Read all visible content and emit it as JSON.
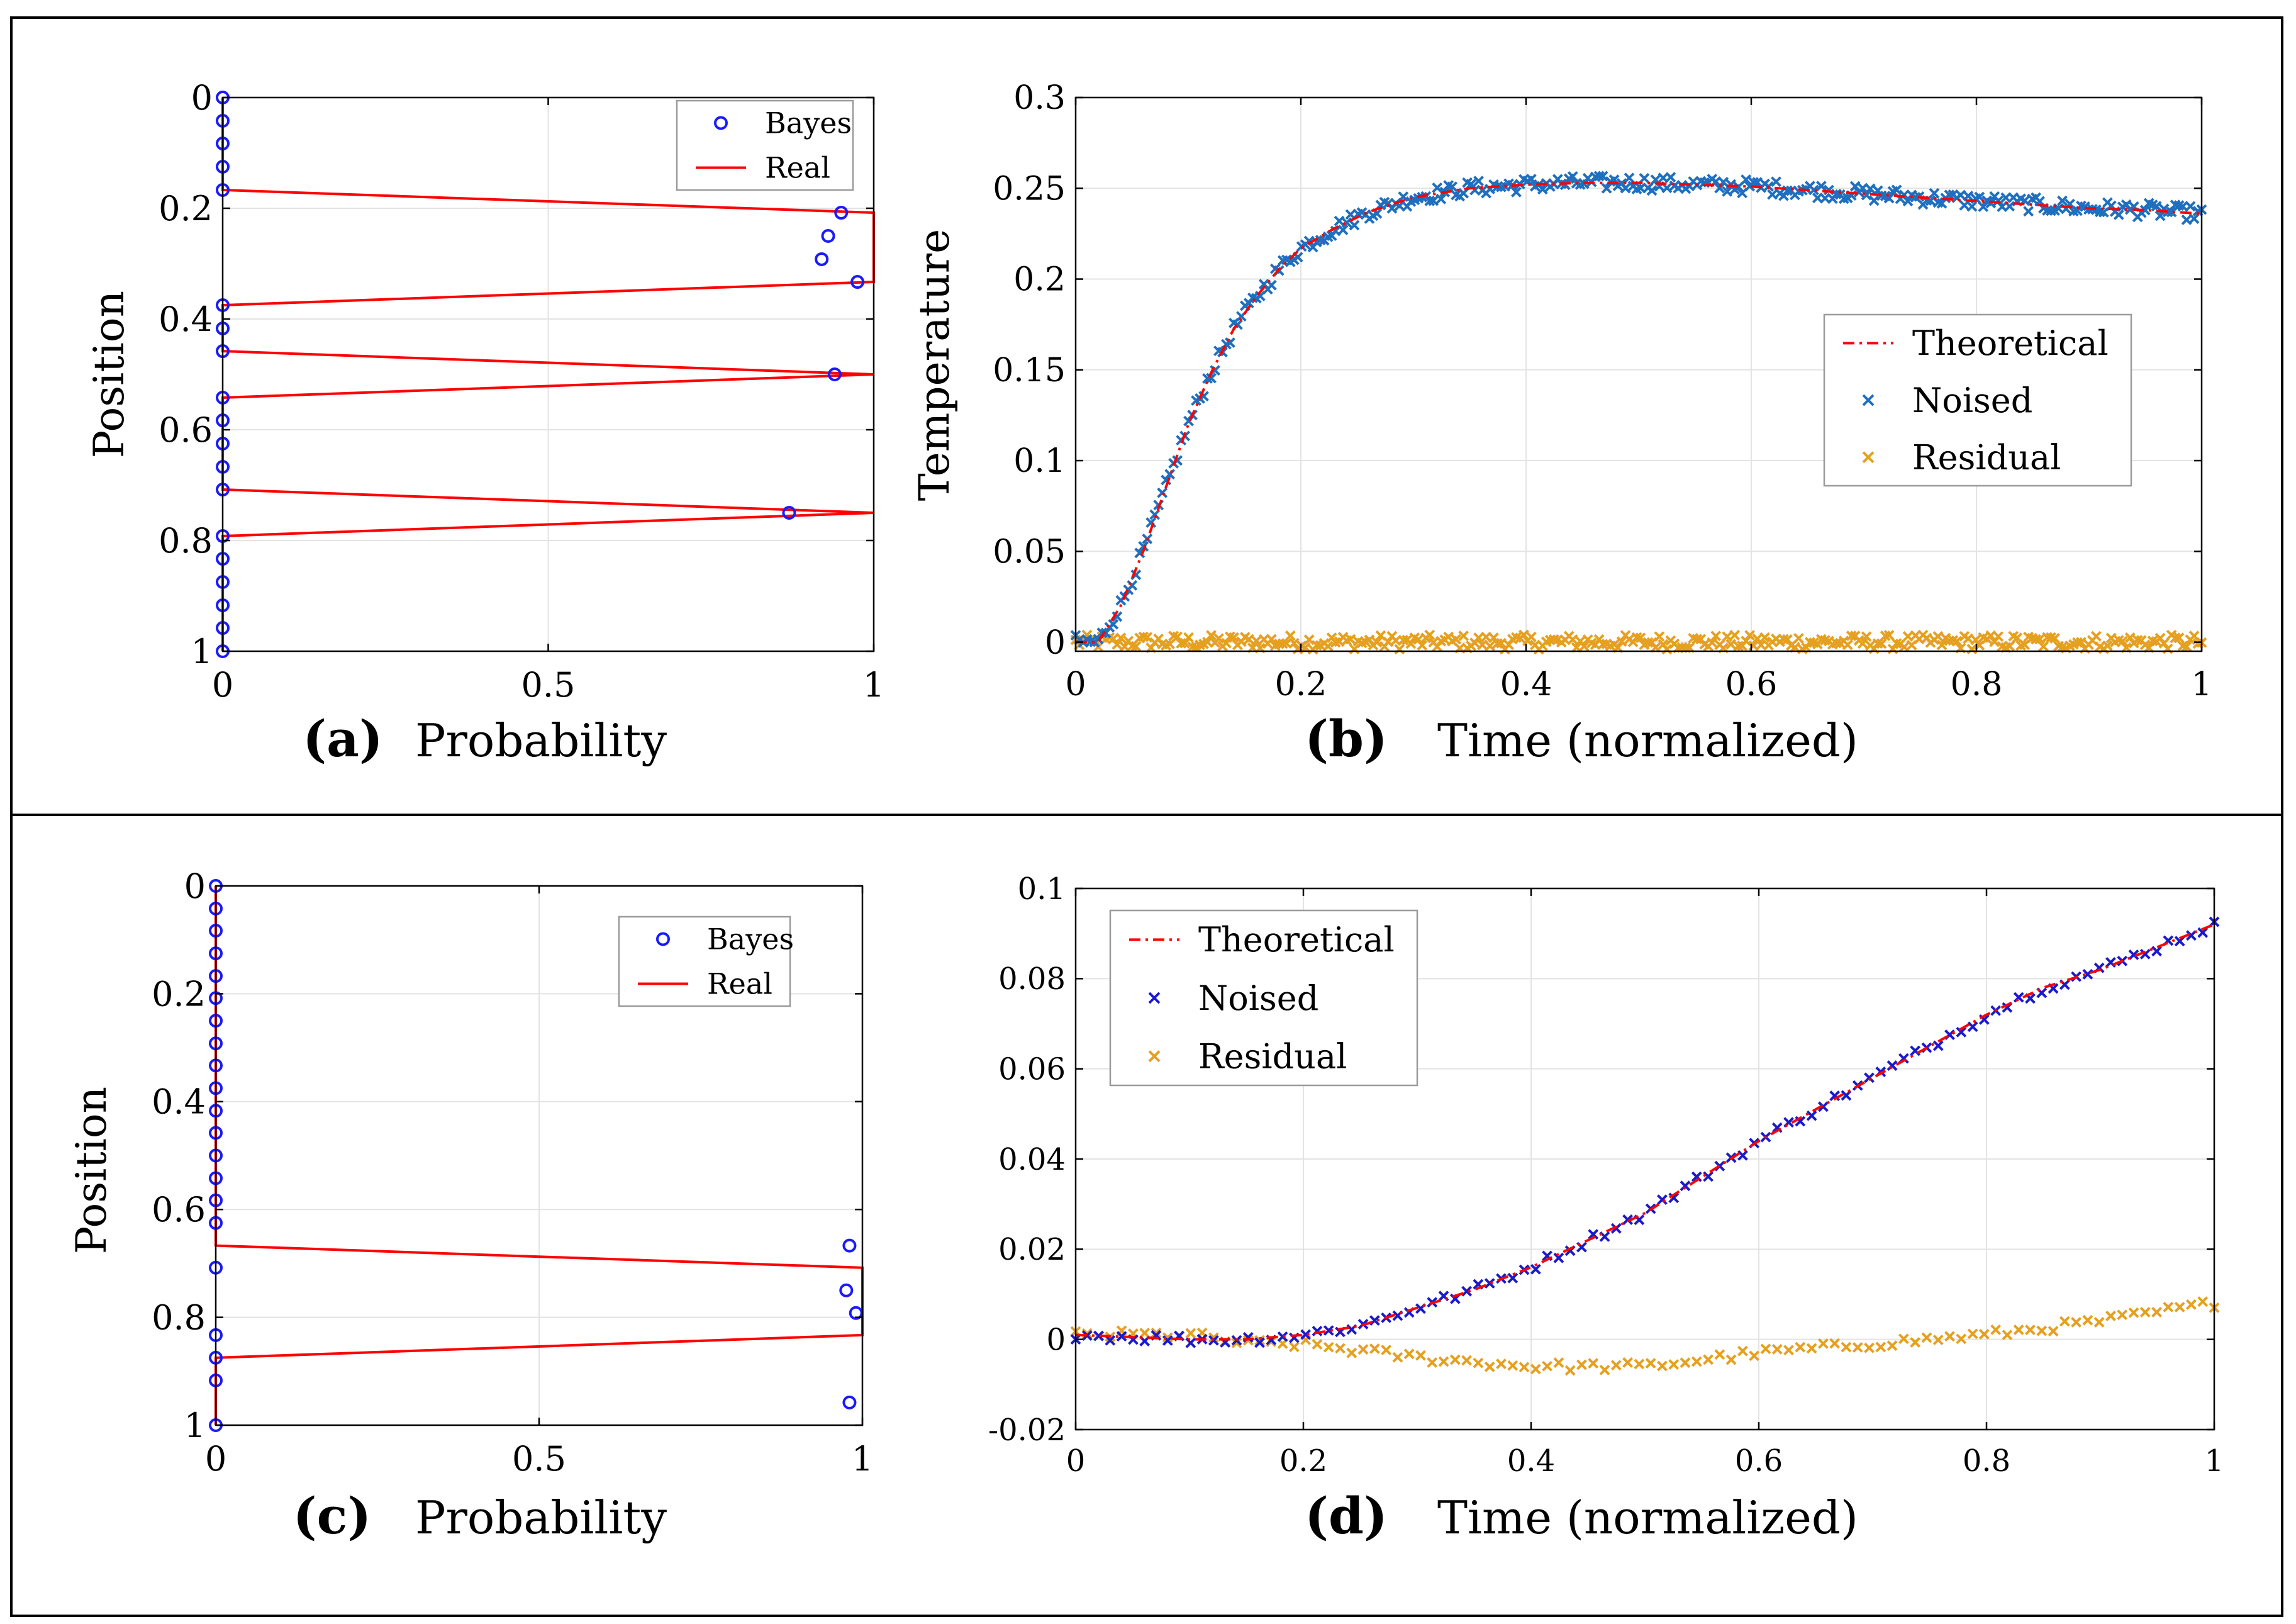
{
  "figure": {
    "panel_letters": [
      "(a)",
      "(b)",
      "(c)",
      "(d)"
    ]
  },
  "chart_data": [
    {
      "id": "a",
      "type": "scatter+line",
      "title": "",
      "panel_label": "(a)",
      "xlabel": "Probability",
      "ylabel": "Position",
      "xlim": [
        0,
        1
      ],
      "ylim": [
        0,
        1
      ],
      "y_reversed": true,
      "xticks": [
        0,
        0.5,
        1
      ],
      "xtick_labels": [
        "0",
        "0.5",
        "1"
      ],
      "yticks": [
        0,
        0.2,
        0.4,
        0.6,
        0.8,
        1
      ],
      "ytick_labels": [
        "0",
        "0.2",
        "0.4",
        "0.6",
        "0.8",
        "1"
      ],
      "grid": true,
      "legend": {
        "placement": "top-right",
        "entries": [
          "Bayes",
          "Real"
        ]
      },
      "colors": {
        "bayes": "#1a1aff",
        "real": "#ff0000"
      },
      "series": [
        {
          "name": "Bayes",
          "marker": "circle",
          "points": [
            [
              0,
              0
            ],
            [
              0,
              0.042
            ],
            [
              0,
              0.083
            ],
            [
              0,
              0.125
            ],
            [
              0,
              0.167
            ],
            [
              0.95,
              0.208
            ],
            [
              0.93,
              0.25
            ],
            [
              0.92,
              0.292
            ],
            [
              0.975,
              0.333
            ],
            [
              0,
              0.375
            ],
            [
              0,
              0.417
            ],
            [
              0,
              0.458
            ],
            [
              0.94,
              0.5
            ],
            [
              0,
              0.542
            ],
            [
              0,
              0.583
            ],
            [
              0,
              0.625
            ],
            [
              0,
              0.667
            ],
            [
              0,
              0.708
            ],
            [
              0.87,
              0.75
            ],
            [
              0,
              0.792
            ],
            [
              0,
              0.833
            ],
            [
              0,
              0.875
            ],
            [
              0,
              0.917
            ],
            [
              0,
              0.958
            ],
            [
              0,
              1
            ]
          ]
        },
        {
          "name": "Real",
          "line": "solid",
          "points": [
            [
              0,
              0
            ],
            [
              0,
              0.167
            ],
            [
              1,
              0.208
            ],
            [
              1,
              0.333
            ],
            [
              0,
              0.375
            ],
            [
              0,
              0.458
            ],
            [
              1,
              0.5
            ],
            [
              0,
              0.542
            ],
            [
              0,
              0.708
            ],
            [
              1,
              0.75
            ],
            [
              0,
              0.792
            ],
            [
              0,
              1
            ]
          ]
        }
      ]
    },
    {
      "id": "b",
      "type": "line+scatter",
      "title": "",
      "panel_label": "(b)",
      "xlabel": "Time (normalized)",
      "ylabel": "Temperature",
      "xlim": [
        0,
        1
      ],
      "ylim": [
        -0.005,
        0.3
      ],
      "xticks": [
        0,
        0.2,
        0.4,
        0.6,
        0.8,
        1
      ],
      "xtick_labels": [
        "0",
        "0.2",
        "0.4",
        "0.6",
        "0.8",
        "1"
      ],
      "yticks": [
        0,
        0.05,
        0.1,
        0.15,
        0.2,
        0.25,
        0.3
      ],
      "ytick_labels": [
        "0",
        "0.05",
        "0.1",
        "0.15",
        "0.2",
        "0.25",
        "0.3"
      ],
      "grid": true,
      "legend": {
        "placement": "center-right",
        "entries": [
          "Theoretical",
          "Noised",
          "Residual"
        ]
      },
      "colors": {
        "theoretical": "#ff0000",
        "noised": "#1f6fbf",
        "residual": "#e6a020"
      },
      "n_points": 300,
      "noise_amplitude": 0.004,
      "series": [
        {
          "name": "Theoretical",
          "line": "dash-dot",
          "x": [
            0,
            0.02,
            0.04,
            0.06,
            0.08,
            0.1,
            0.12,
            0.14,
            0.16,
            0.18,
            0.2,
            0.23,
            0.26,
            0.3,
            0.35,
            0.4,
            0.45,
            0.5,
            0.55,
            0.6,
            0.65,
            0.7,
            0.75,
            0.8,
            0.85,
            0.9,
            0.95,
            1
          ],
          "y": [
            0,
            0,
            0.02,
            0.05,
            0.085,
            0.12,
            0.148,
            0.172,
            0.19,
            0.205,
            0.217,
            0.228,
            0.237,
            0.245,
            0.25,
            0.252,
            0.253,
            0.253,
            0.252,
            0.251,
            0.249,
            0.247,
            0.245,
            0.243,
            0.241,
            0.239,
            0.238,
            0.236
          ]
        },
        {
          "name": "Noised",
          "marker": "x",
          "follows": "Theoretical"
        },
        {
          "name": "Residual",
          "marker": "x",
          "around": 0
        }
      ]
    },
    {
      "id": "c",
      "type": "scatter+line",
      "title": "",
      "panel_label": "(c)",
      "xlabel": "Probability",
      "ylabel": "Position",
      "xlim": [
        0,
        1
      ],
      "ylim": [
        0,
        1
      ],
      "y_reversed": true,
      "xticks": [
        0,
        0.5,
        1
      ],
      "xtick_labels": [
        "0",
        "0.5",
        "1"
      ],
      "yticks": [
        0,
        0.2,
        0.4,
        0.6,
        0.8,
        1
      ],
      "ytick_labels": [
        "0",
        "0.2",
        "0.4",
        "0.6",
        "0.8",
        "1"
      ],
      "grid": true,
      "legend": {
        "placement": "top-right",
        "entries": [
          "Bayes",
          "Real"
        ]
      },
      "colors": {
        "bayes": "#1a1aff",
        "real": "#ff0000"
      },
      "series": [
        {
          "name": "Bayes",
          "marker": "circle",
          "points": [
            [
              0,
              0
            ],
            [
              0,
              0.042
            ],
            [
              0,
              0.083
            ],
            [
              0,
              0.125
            ],
            [
              0,
              0.167
            ],
            [
              0,
              0.208
            ],
            [
              0,
              0.25
            ],
            [
              0,
              0.292
            ],
            [
              0,
              0.333
            ],
            [
              0,
              0.375
            ],
            [
              0,
              0.417
            ],
            [
              0,
              0.458
            ],
            [
              0,
              0.5
            ],
            [
              0,
              0.542
            ],
            [
              0,
              0.583
            ],
            [
              0,
              0.625
            ],
            [
              0.98,
              0.667
            ],
            [
              0,
              0.708
            ],
            [
              0.975,
              0.75
            ],
            [
              0.99,
              0.792
            ],
            [
              0,
              0.833
            ],
            [
              0,
              0.875
            ],
            [
              0,
              0.917
            ],
            [
              0.98,
              0.958
            ],
            [
              0,
              1
            ]
          ]
        },
        {
          "name": "Real",
          "line": "solid",
          "points": [
            [
              0,
              0
            ],
            [
              0,
              0.667
            ],
            [
              1,
              0.708
            ],
            [
              1,
              0.833
            ],
            [
              0,
              0.875
            ],
            [
              0,
              1
            ]
          ]
        }
      ]
    },
    {
      "id": "d",
      "type": "line+scatter",
      "title": "",
      "panel_label": "(d)",
      "xlabel": "Time (normalized)",
      "ylabel": "",
      "xlim": [
        0,
        1
      ],
      "ylim": [
        -0.02,
        0.1
      ],
      "xticks": [
        0,
        0.2,
        0.4,
        0.6,
        0.8,
        1
      ],
      "xtick_labels": [
        "0",
        "0.2",
        "0.4",
        "0.6",
        "0.8",
        "1"
      ],
      "yticks": [
        -0.02,
        0,
        0.02,
        0.04,
        0.06,
        0.08,
        0.1
      ],
      "ytick_labels": [
        "-0.02",
        "0",
        "0.02",
        "0.04",
        "0.06",
        "0.08",
        "0.1"
      ],
      "grid": true,
      "legend": {
        "placement": "top-left",
        "entries": [
          "Theoretical",
          "Noised",
          "Residual"
        ]
      },
      "colors": {
        "theoretical": "#ff0000",
        "noised": "#1a1acc",
        "residual": "#e6a020"
      },
      "n_points": 100,
      "noise_amplitude": 0.001,
      "series": [
        {
          "name": "Theoretical",
          "line": "dash-dot",
          "x": [
            0,
            0.1,
            0.15,
            0.2,
            0.25,
            0.3,
            0.35,
            0.4,
            0.45,
            0.5,
            0.55,
            0.6,
            0.65,
            0.7,
            0.75,
            0.8,
            0.85,
            0.9,
            0.95,
            1
          ],
          "y": [
            0.001,
            0,
            0,
            0.001,
            0.003,
            0.007,
            0.011,
            0.016,
            0.022,
            0.028,
            0.036,
            0.044,
            0.051,
            0.058,
            0.065,
            0.072,
            0.078,
            0.082,
            0.087,
            0.092
          ]
        },
        {
          "name": "Noised",
          "marker": "x",
          "follows": "Theoretical"
        },
        {
          "name": "Residual",
          "marker": "x",
          "x": [
            0,
            0.1,
            0.15,
            0.2,
            0.3,
            0.4,
            0.5,
            0.6,
            0.7,
            0.8,
            0.9,
            1
          ],
          "y": [
            0.001,
            0.001,
            -0.001,
            -0.001,
            -0.004,
            -0.006,
            -0.006,
            -0.003,
            -0.001,
            0.001,
            0.004,
            0.008
          ]
        }
      ]
    }
  ]
}
